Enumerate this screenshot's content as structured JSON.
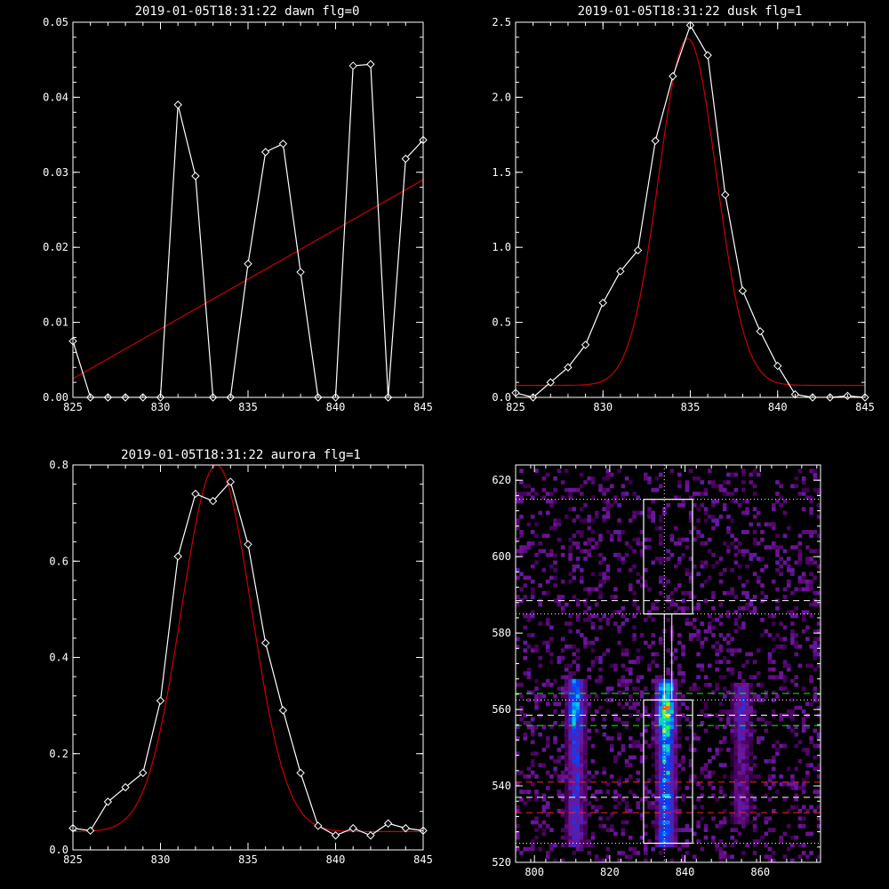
{
  "colors": {
    "background": "#000000",
    "axes": "#ffffff",
    "data_line": "#ffffff",
    "fit_line": "#cc0000",
    "green_marker": "#00ff00",
    "red_marker": "#ff2020",
    "white_marker": "#ffffff"
  },
  "chart_data": [
    {
      "id": "dawn",
      "type": "line",
      "title": "2019-01-05T18:31:22 dawn flg=0",
      "xlabel": "",
      "ylabel": "",
      "xlim": [
        825,
        845
      ],
      "ylim": [
        0,
        0.05
      ],
      "xticks": [
        825,
        830,
        835,
        840,
        845
      ],
      "xtick_labels": [
        "825",
        "830",
        "835",
        "840",
        "845"
      ],
      "yticks": [
        0,
        0.01,
        0.02,
        0.03,
        0.04,
        0.05
      ],
      "ytick_labels": [
        "0.00",
        "0.01",
        "0.02",
        "0.03",
        "0.04",
        "0.05"
      ],
      "series": [
        {
          "role": "data",
          "markers": true,
          "x": [
            825,
            826,
            827,
            828,
            829,
            830,
            831,
            832,
            833,
            834,
            835,
            836,
            837,
            838,
            839,
            840,
            841,
            842,
            843,
            844,
            845
          ],
          "y": [
            0.0075,
            0,
            0,
            0,
            0,
            0,
            0.039,
            0.0295,
            0,
            0,
            0.0178,
            0.0327,
            0.0338,
            0.0167,
            0,
            0,
            0.0442,
            0.0444,
            0,
            0.0318,
            0.0343
          ]
        },
        {
          "role": "fit",
          "markers": false,
          "x": [
            825,
            845
          ],
          "y": [
            0.0025,
            0.029
          ]
        }
      ]
    },
    {
      "id": "dusk",
      "type": "line",
      "title": "2019-01-05T18:31:22 dusk flg=1",
      "xlabel": "",
      "ylabel": "",
      "xlim": [
        825,
        845
      ],
      "ylim": [
        0,
        2.5
      ],
      "xticks": [
        825,
        830,
        835,
        840,
        845
      ],
      "xtick_labels": [
        "825",
        "830",
        "835",
        "840",
        "845"
      ],
      "yticks": [
        0,
        0.5,
        1.0,
        1.5,
        2.0,
        2.5
      ],
      "ytick_labels": [
        "0.0",
        "0.5",
        "1.0",
        "1.5",
        "2.0",
        "2.5"
      ],
      "series": [
        {
          "role": "data",
          "markers": true,
          "x": [
            825,
            826,
            827,
            828,
            829,
            830,
            831,
            832,
            833,
            834,
            835,
            836,
            837,
            838,
            839,
            840,
            841,
            842,
            843,
            844,
            845
          ],
          "y": [
            0.03,
            0,
            0.1,
            0.2,
            0.35,
            0.63,
            0.84,
            0.98,
            1.71,
            2.14,
            2.48,
            2.28,
            1.35,
            0.71,
            0.44,
            0.21,
            0.02,
            0,
            0,
            0.01,
            0
          ]
        },
        {
          "role": "fit",
          "markers": false,
          "gaussian": true,
          "amp": 2.31,
          "center": 834.85,
          "sigma": 1.65,
          "offset": 0.08
        }
      ]
    },
    {
      "id": "aurora",
      "type": "line",
      "title": "2019-01-05T18:31:22 aurora flg=1",
      "xlabel": "",
      "ylabel": "",
      "xlim": [
        825,
        845
      ],
      "ylim": [
        0,
        0.8
      ],
      "xticks": [
        825,
        830,
        835,
        840,
        845
      ],
      "xtick_labels": [
        "825",
        "830",
        "835",
        "840",
        "845"
      ],
      "yticks": [
        0,
        0.2,
        0.4,
        0.6,
        0.8
      ],
      "ytick_labels": [
        "0.0",
        "0.2",
        "0.4",
        "0.6",
        "0.8"
      ],
      "series": [
        {
          "role": "data",
          "markers": true,
          "x": [
            825,
            826,
            827,
            828,
            829,
            830,
            831,
            832,
            833,
            834,
            835,
            836,
            837,
            838,
            839,
            840,
            841,
            842,
            843,
            844,
            845
          ],
          "y": [
            0.045,
            0.04,
            0.1,
            0.13,
            0.16,
            0.31,
            0.61,
            0.74,
            0.725,
            0.765,
            0.635,
            0.43,
            0.29,
            0.16,
            0.05,
            0.03,
            0.045,
            0.03,
            0.055,
            0.045,
            0.04
          ]
        },
        {
          "role": "fit",
          "markers": false,
          "gaussian": true,
          "amp": 0.762,
          "center": 833.2,
          "sigma": 2.0,
          "offset": 0.038
        }
      ]
    },
    {
      "id": "spectrogram",
      "type": "heatmap",
      "title": "",
      "xlabel": "",
      "ylabel": "",
      "xlim": [
        795,
        876
      ],
      "ylim": [
        520,
        624
      ],
      "xticks": [
        800,
        820,
        840,
        860
      ],
      "xtick_labels": [
        "800",
        "820",
        "840",
        "860"
      ],
      "yticks": [
        520,
        540,
        560,
        580,
        600,
        620
      ],
      "ytick_labels": [
        "520",
        "540",
        "560",
        "580",
        "600",
        "620"
      ],
      "bright_columns": [
        {
          "x": 811,
          "ymin": 524,
          "ymax": 567,
          "peak_y": 561,
          "peak_level": 0.62
        },
        {
          "x": 835,
          "ymin": 524,
          "ymax": 567,
          "peak_y": 559,
          "peak_level": 1.0
        },
        {
          "x": 855,
          "ymin": 530,
          "ymax": 566,
          "peak_y": 561,
          "peak_level": 0.35
        }
      ],
      "boxes": [
        {
          "x": [
            829,
            842
          ],
          "y": [
            585,
            615
          ]
        },
        {
          "x": [
            829,
            842
          ],
          "y": [
            525,
            562.5
          ]
        }
      ],
      "connector": {
        "x": [
          834.5,
          836.5
        ],
        "y": [
          562.5,
          585
        ]
      },
      "vertical_line_x": 834.5,
      "dotted_white_y": [
        615,
        585,
        562.5,
        525
      ],
      "dashed_white_y": [
        588.5,
        558.5,
        537
      ],
      "dashed_green_y": [
        564.2,
        555.8
      ],
      "dashed_red_y": [
        541,
        533
      ]
    }
  ]
}
